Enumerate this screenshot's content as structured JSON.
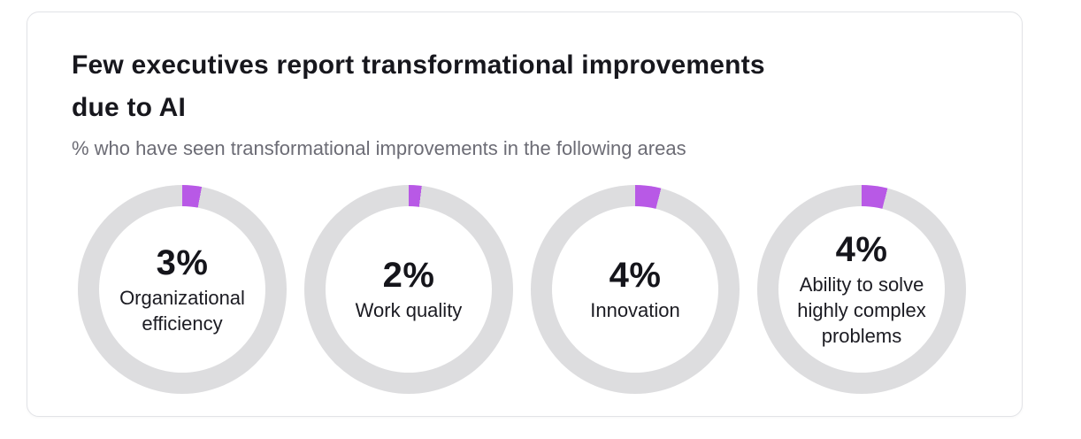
{
  "card": {
    "title_lines": [
      "Few executives report transformational improvements",
      "due to AI"
    ],
    "subtitle": "% who have seen transformational improvements in the following areas"
  },
  "chart_data": {
    "type": "pie",
    "variant": "donut-progress-set",
    "title": "Few executives report transformational improvements due to AI",
    "subtitle": "% who have seen transformational improvements in the following areas",
    "unit": "%",
    "segment_start": "12-oclock-clockwise",
    "items": [
      {
        "label": "Organizational efficiency",
        "value": 3,
        "value_label": "3%"
      },
      {
        "label": "Work quality",
        "value": 2,
        "value_label": "2%"
      },
      {
        "label": "Innovation",
        "value": 4,
        "value_label": "4%"
      },
      {
        "label": "Ability to solve highly complex problems",
        "value": 4,
        "value_label": "4%"
      }
    ],
    "colors": {
      "segment": "#b859e6",
      "track": "#dddddf",
      "title_text": "#17171d",
      "subtitle_text": "#6c6c75",
      "value_text": "#15151b"
    }
  }
}
